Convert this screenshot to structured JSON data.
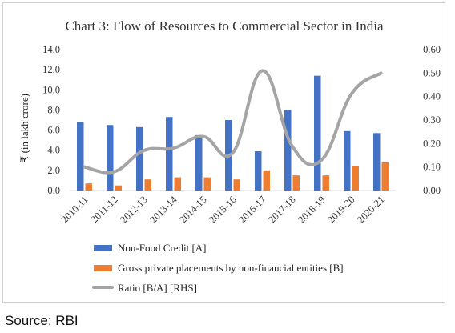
{
  "chart_data": {
    "type": "bar",
    "title": "Chart 3: Flow of Resources to Commercial Sector in India",
    "ylabel": "₹ (in lakh crore)",
    "ylim": [
      0,
      14
    ],
    "y_ticks": [
      "0.0",
      "2.0",
      "4.0",
      "6.0",
      "8.0",
      "10.0",
      "12.0",
      "14.0"
    ],
    "y2lim": [
      0,
      0.6
    ],
    "y2_ticks": [
      "0.00",
      "0.10",
      "0.20",
      "0.30",
      "0.40",
      "0.50",
      "0.60"
    ],
    "categories": [
      "2010-11",
      "2011-12",
      "2012-13",
      "2013-14",
      "2014-15",
      "2015-16",
      "2016-17",
      "2017-18",
      "2018-19",
      "2019-20",
      "2020-21"
    ],
    "series": [
      {
        "name": "Non-Food Credit [A]",
        "type": "bar",
        "axis": "left",
        "color": "#4472C4",
        "values": [
          6.8,
          6.5,
          6.3,
          7.3,
          5.5,
          7.0,
          3.9,
          8.0,
          11.4,
          5.9,
          5.7
        ]
      },
      {
        "name": "Gross private placements by non-financial entities [B]",
        "type": "bar",
        "axis": "left",
        "color": "#ED7D31",
        "values": [
          0.7,
          0.5,
          1.1,
          1.3,
          1.3,
          1.1,
          2.0,
          1.5,
          1.5,
          2.4,
          2.8
        ]
      },
      {
        "name": "Ratio [B/A] [RHS]",
        "type": "line",
        "axis": "right",
        "color": "#A5A5A5",
        "values": [
          0.1,
          0.08,
          0.17,
          0.18,
          0.23,
          0.16,
          0.51,
          0.19,
          0.13,
          0.41,
          0.5
        ]
      }
    ],
    "legend_position": "bottom",
    "grid": false
  },
  "source": "Source: RBI"
}
